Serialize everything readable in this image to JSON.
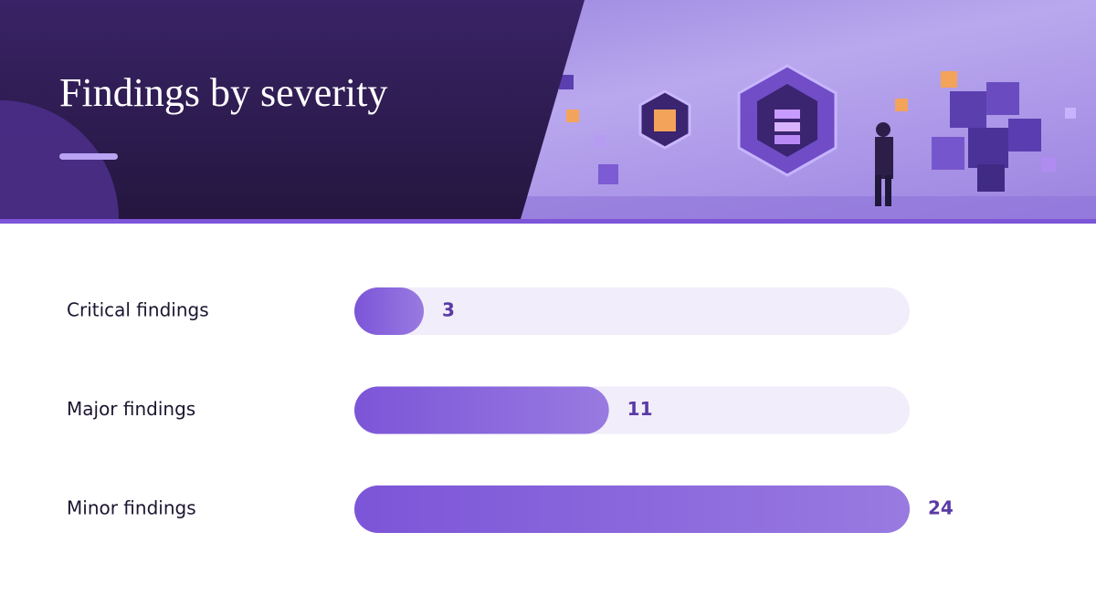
{
  "chart_data": {
    "type": "bar",
    "orientation": "horizontal",
    "title": "Findings by severity",
    "categories": [
      "Critical findings",
      "Major findings",
      "Minor findings"
    ],
    "values": [
      3,
      11,
      24
    ],
    "color": "#7c55d8",
    "xlim": [
      0,
      24
    ]
  }
}
